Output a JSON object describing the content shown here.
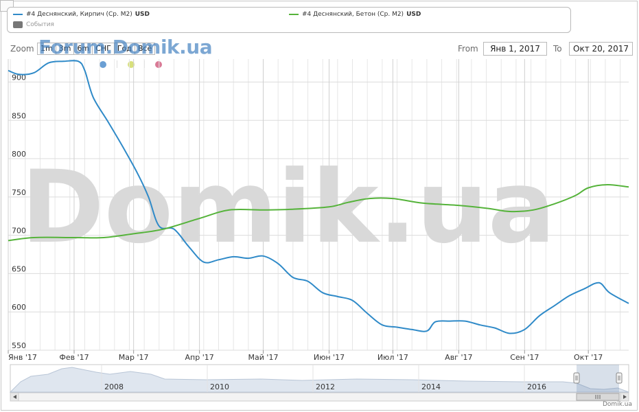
{
  "legend": {
    "series1_label": "#4 Деснянский, Кирпич (Ср. М2)",
    "series1_unit": "USD",
    "series2_label": "#4 Деснянский, Бетон (Ср. М2)",
    "series2_unit": "USD",
    "events_label": "События"
  },
  "zoom": {
    "label": "Zoom",
    "buttons": [
      "1m",
      "3m",
      "6m",
      "СНГ",
      "Год",
      "Всё"
    ]
  },
  "watermark_small": "Forum.Domik.ua",
  "watermark_big": "Domik.ua",
  "range": {
    "from_label": "From",
    "from_value": "Янв 1, 2017",
    "to_label": "To",
    "to_value": "Окт 20, 2017"
  },
  "flags": [
    {
      "color": "#6a9fd4"
    },
    {
      "color": "#d8e07c"
    },
    {
      "color": "#d97a96"
    }
  ],
  "credit": "Domik.ua",
  "navigator": {
    "year_labels": [
      "2008",
      "2010",
      "2012",
      "2014",
      "2016"
    ]
  },
  "colors": {
    "series1": "#2f8ac8",
    "series2": "#55b33a",
    "grid": "#e0e0e0"
  },
  "chart_data": {
    "type": "line",
    "title": "",
    "xlabel": "",
    "ylabel": "",
    "ylim": [
      550,
      930
    ],
    "xlim": [
      "2017-01-01",
      "2017-10-20"
    ],
    "x_tick_labels": [
      "Янв '17",
      "Фев '17",
      "Мар '17",
      "Апр '17",
      "Май '17",
      "Июн '17",
      "Июл '17",
      "Авг '17",
      "Сен '17",
      "Окт '17"
    ],
    "y_tick_labels": [
      "550",
      "600",
      "650",
      "700",
      "750",
      "800",
      "850",
      "900"
    ],
    "y_ticks": [
      550,
      600,
      650,
      700,
      750,
      800,
      850,
      900
    ],
    "grid": true,
    "series": [
      {
        "name": "#4 Деснянский, Кирпич (Ср. М2)",
        "color": "#2f8ac8",
        "points": [
          [
            "2017-01-01",
            915
          ],
          [
            "2017-01-06",
            910
          ],
          [
            "2017-01-13",
            912
          ],
          [
            "2017-01-20",
            925
          ],
          [
            "2017-01-27",
            927
          ],
          [
            "2017-02-03",
            927
          ],
          [
            "2017-02-06",
            915
          ],
          [
            "2017-02-10",
            880
          ],
          [
            "2017-02-17",
            848
          ],
          [
            "2017-02-24",
            815
          ],
          [
            "2017-03-03",
            780
          ],
          [
            "2017-03-08",
            750
          ],
          [
            "2017-03-13",
            712
          ],
          [
            "2017-03-20",
            708
          ],
          [
            "2017-03-27",
            685
          ],
          [
            "2017-04-03",
            665
          ],
          [
            "2017-04-10",
            668
          ],
          [
            "2017-04-17",
            672
          ],
          [
            "2017-04-24",
            670
          ],
          [
            "2017-05-01",
            673
          ],
          [
            "2017-05-08",
            663
          ],
          [
            "2017-05-15",
            645
          ],
          [
            "2017-05-22",
            640
          ],
          [
            "2017-05-29",
            625
          ],
          [
            "2017-06-05",
            620
          ],
          [
            "2017-06-12",
            615
          ],
          [
            "2017-06-19",
            598
          ],
          [
            "2017-06-26",
            583
          ],
          [
            "2017-07-03",
            580
          ],
          [
            "2017-07-10",
            577
          ],
          [
            "2017-07-17",
            575
          ],
          [
            "2017-07-21",
            587
          ],
          [
            "2017-07-28",
            588
          ],
          [
            "2017-08-04",
            588
          ],
          [
            "2017-08-11",
            583
          ],
          [
            "2017-08-18",
            579
          ],
          [
            "2017-08-25",
            572
          ],
          [
            "2017-09-01",
            577
          ],
          [
            "2017-09-08",
            595
          ],
          [
            "2017-09-15",
            608
          ],
          [
            "2017-09-22",
            621
          ],
          [
            "2017-09-29",
            630
          ],
          [
            "2017-10-06",
            638
          ],
          [
            "2017-10-11",
            625
          ],
          [
            "2017-10-20",
            611
          ]
        ]
      },
      {
        "name": "#4 Деснянский, Бетон (Ср. М2)",
        "color": "#55b33a",
        "points": [
          [
            "2017-01-01",
            693
          ],
          [
            "2017-01-13",
            697
          ],
          [
            "2017-02-01",
            697
          ],
          [
            "2017-02-15",
            697
          ],
          [
            "2017-03-01",
            702
          ],
          [
            "2017-03-15",
            708
          ],
          [
            "2017-04-01",
            722
          ],
          [
            "2017-04-15",
            733
          ],
          [
            "2017-05-01",
            733
          ],
          [
            "2017-05-15",
            734
          ],
          [
            "2017-06-01",
            737
          ],
          [
            "2017-06-10",
            743
          ],
          [
            "2017-06-20",
            748
          ],
          [
            "2017-07-01",
            748
          ],
          [
            "2017-07-15",
            742
          ],
          [
            "2017-08-01",
            739
          ],
          [
            "2017-08-15",
            735
          ],
          [
            "2017-08-25",
            731
          ],
          [
            "2017-09-05",
            733
          ],
          [
            "2017-09-15",
            741
          ],
          [
            "2017-09-25",
            752
          ],
          [
            "2017-10-01",
            762
          ],
          [
            "2017-10-10",
            766
          ],
          [
            "2017-10-20",
            763
          ]
        ]
      }
    ]
  }
}
